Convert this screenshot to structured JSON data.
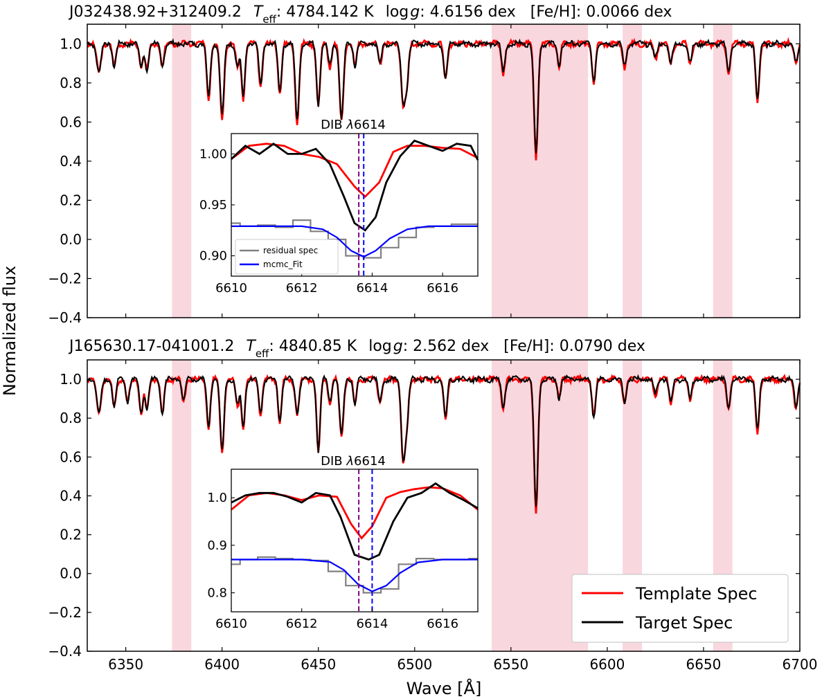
{
  "colors": {
    "template": "#ff0000",
    "target": "#000000",
    "residual": "#808080",
    "fit": "#0000ff",
    "dib_rest": "#800080",
    "dib_center": "#0000ff",
    "band": "#f4b6c2"
  },
  "chart_data": [
    {
      "type": "line",
      "name": "panel-top",
      "title_parts": {
        "id": "J032438.92+312409.2",
        "teff_label": "T",
        "teff_sub": "eff",
        "teff_value": ": 4784.142 K",
        "logg_label": "log",
        "logg_g": "g",
        "logg_value": ": 4.6156 dex",
        "feh": "[Fe/H]: 0.0066 dex"
      },
      "xlim": [
        6330,
        6700
      ],
      "ylim": [
        -0.4,
        1.1
      ],
      "yticks": [
        -0.4,
        -0.2,
        0.0,
        0.2,
        0.4,
        0.6,
        0.8,
        1.0
      ],
      "yticklabels": [
        "−0.4",
        "−0.2",
        "0.0",
        "0.2",
        "0.4",
        "0.6",
        "0.8",
        "1.0"
      ],
      "shaded_bands": [
        [
          6374,
          6384
        ],
        [
          6540,
          6590
        ],
        [
          6608,
          6618
        ],
        [
          6655,
          6665
        ]
      ],
      "absorption_lines": [
        [
          6336,
          0.15,
          1.2
        ],
        [
          6344,
          0.12,
          1.0
        ],
        [
          6358,
          0.12,
          1.0
        ],
        [
          6361,
          0.14,
          1.0
        ],
        [
          6369,
          0.12,
          1.0
        ],
        [
          6393,
          0.28,
          1.0
        ],
        [
          6400,
          0.38,
          1.1
        ],
        [
          6408,
          0.12,
          1.0
        ],
        [
          6411,
          0.28,
          1.0
        ],
        [
          6420,
          0.22,
          1.0
        ],
        [
          6430,
          0.25,
          1.0
        ],
        [
          6439,
          0.4,
          1.1
        ],
        [
          6450,
          0.32,
          1.0
        ],
        [
          6456,
          0.12,
          1.0
        ],
        [
          6462,
          0.4,
          1.1
        ],
        [
          6469,
          0.12,
          0.9
        ],
        [
          6482,
          0.1,
          1.0
        ],
        [
          6494,
          0.3,
          1.1
        ],
        [
          6496,
          0.2,
          1.0
        ],
        [
          6516,
          0.18,
          1.0
        ],
        [
          6546,
          0.15,
          1.0
        ],
        [
          6563,
          0.58,
          1.1
        ],
        [
          6575,
          0.12,
          0.9
        ],
        [
          6593,
          0.2,
          1.0
        ],
        [
          6609,
          0.12,
          1.0
        ],
        [
          6625,
          0.08,
          1.0
        ],
        [
          6633,
          0.1,
          1.0
        ],
        [
          6643,
          0.1,
          1.0
        ],
        [
          6663,
          0.15,
          1.0
        ],
        [
          6678,
          0.3,
          1.0
        ],
        [
          6698,
          0.1,
          1.0
        ]
      ],
      "inset": {
        "title_prefix": "DIB ",
        "title_lambda": "λ",
        "title_value": "6614",
        "xlim": [
          6610,
          6617
        ],
        "ylim": [
          0.88,
          1.02
        ],
        "xticks": [
          6610,
          6612,
          6614,
          6616
        ],
        "yticks": [
          0.9,
          0.95,
          1.0
        ],
        "yticklabels": [
          "0.90",
          "0.95",
          "1.00"
        ],
        "dib_rest_wave": 6613.62,
        "dib_center_wave": 6613.76,
        "template_x": [
          6610,
          6610.5,
          6611,
          6611.5,
          6612,
          6612.5,
          6613,
          6613.5,
          6613.8,
          6614.2,
          6614.6,
          6615,
          6615.5,
          6616,
          6616.5,
          6617
        ],
        "template_y": [
          0.995,
          1.008,
          1.01,
          1.008,
          1.0,
          0.997,
          0.99,
          0.968,
          0.958,
          0.972,
          1.002,
          1.008,
          1.008,
          1.006,
          1.005,
          0.996
        ],
        "target_x": [
          6610,
          6610.4,
          6610.8,
          6611.2,
          6611.6,
          6612,
          6612.4,
          6612.8,
          6613.2,
          6613.5,
          6613.8,
          6614.1,
          6614.4,
          6614.8,
          6615.2,
          6615.6,
          6616,
          6616.4,
          6616.8,
          6617
        ],
        "target_y": [
          0.995,
          1.008,
          1.0,
          1.01,
          1.0,
          1.0,
          1.005,
          0.99,
          0.958,
          0.932,
          0.925,
          0.938,
          0.972,
          0.998,
          1.013,
          1.008,
          1.003,
          1.01,
          1.008,
          0.994
        ],
        "residual_x": [
          6610,
          6610.5,
          6611,
          6611.5,
          6612,
          6612.5,
          6613,
          6613.5,
          6614,
          6614.5,
          6615,
          6615.5,
          6616,
          6616.5,
          6617
        ],
        "residual_y": [
          0.932,
          0.929,
          0.93,
          0.928,
          0.935,
          0.924,
          0.916,
          0.9,
          0.898,
          0.908,
          0.918,
          0.928,
          0.929,
          0.931,
          0.931
        ],
        "fit_x": [
          6610,
          6611,
          6612,
          6612.6,
          6613,
          6613.4,
          6613.76,
          6614.1,
          6614.5,
          6615,
          6615.6,
          6616,
          6617
        ],
        "fit_y": [
          0.929,
          0.929,
          0.929,
          0.926,
          0.918,
          0.905,
          0.899,
          0.905,
          0.917,
          0.926,
          0.929,
          0.929,
          0.929
        ],
        "legend_entries": [
          "residual spec",
          "mcmc_Fit"
        ]
      }
    },
    {
      "type": "line",
      "name": "panel-bottom",
      "title_parts": {
        "id": "J165630.17-041001.2",
        "teff_label": "T",
        "teff_sub": "eff",
        "teff_value": ": 4840.85 K",
        "logg_label": "log",
        "logg_g": "g",
        "logg_value": ": 2.562 dex",
        "feh": "[Fe/H]: 0.0790 dex"
      },
      "xlim": [
        6330,
        6700
      ],
      "ylim": [
        -0.4,
        1.1
      ],
      "xticks": [
        6350,
        6400,
        6450,
        6500,
        6550,
        6600,
        6650,
        6700
      ],
      "yticks": [
        -0.4,
        -0.2,
        0.0,
        0.2,
        0.4,
        0.6,
        0.8,
        1.0
      ],
      "yticklabels": [
        "−0.4",
        "−0.2",
        "0.0",
        "0.2",
        "0.4",
        "0.6",
        "0.8",
        "1.0"
      ],
      "xlabel": "Wave [Å]",
      "shaded_bands": [
        [
          6374,
          6384
        ],
        [
          6540,
          6590
        ],
        [
          6608,
          6618
        ],
        [
          6655,
          6665
        ]
      ],
      "absorption_lines": [
        [
          6336,
          0.18,
          1.2
        ],
        [
          6344,
          0.15,
          1.0
        ],
        [
          6351,
          0.12,
          1.0
        ],
        [
          6358,
          0.18,
          1.0
        ],
        [
          6361,
          0.16,
          1.0
        ],
        [
          6369,
          0.18,
          1.0
        ],
        [
          6380,
          0.12,
          1.0
        ],
        [
          6393,
          0.25,
          1.0
        ],
        [
          6400,
          0.38,
          1.1
        ],
        [
          6408,
          0.14,
          1.0
        ],
        [
          6411,
          0.25,
          1.0
        ],
        [
          6420,
          0.18,
          1.0
        ],
        [
          6430,
          0.22,
          1.0
        ],
        [
          6439,
          0.18,
          1.1
        ],
        [
          6450,
          0.38,
          1.0
        ],
        [
          6456,
          0.12,
          1.0
        ],
        [
          6462,
          0.3,
          1.1
        ],
        [
          6469,
          0.14,
          0.9
        ],
        [
          6482,
          0.12,
          1.0
        ],
        [
          6494,
          0.42,
          1.1
        ],
        [
          6496,
          0.22,
          1.0
        ],
        [
          6516,
          0.2,
          1.0
        ],
        [
          6546,
          0.15,
          1.0
        ],
        [
          6563,
          0.68,
          1.1
        ],
        [
          6575,
          0.1,
          0.9
        ],
        [
          6593,
          0.2,
          1.0
        ],
        [
          6609,
          0.12,
          1.0
        ],
        [
          6625,
          0.08,
          1.0
        ],
        [
          6633,
          0.12,
          1.0
        ],
        [
          6643,
          0.1,
          1.0
        ],
        [
          6663,
          0.15,
          1.0
        ],
        [
          6678,
          0.28,
          1.0
        ],
        [
          6698,
          0.15,
          1.0
        ]
      ],
      "inset": {
        "title_prefix": "DIB ",
        "title_lambda": "λ",
        "title_value": "6614",
        "xlim": [
          6610,
          6617
        ],
        "ylim": [
          0.76,
          1.06
        ],
        "xticks": [
          6610,
          6612,
          6614,
          6616
        ],
        "yticks": [
          0.8,
          0.9,
          1.0
        ],
        "yticklabels": [
          "0.8",
          "0.9",
          "1.0"
        ],
        "dib_rest_wave": 6613.62,
        "dib_center_wave": 6614.0,
        "template_x": [
          6610,
          6610.5,
          6611,
          6611.5,
          6612,
          6612.5,
          6613,
          6613.4,
          6613.7,
          6614,
          6614.4,
          6614.8,
          6615.2,
          6615.6,
          6616,
          6616.5,
          6617
        ],
        "template_y": [
          0.975,
          1.005,
          1.01,
          1.005,
          0.995,
          1.005,
          1.002,
          0.945,
          0.915,
          0.94,
          1.0,
          1.012,
          1.018,
          1.022,
          1.02,
          1.005,
          0.975
        ],
        "target_x": [
          6610,
          6610.4,
          6610.8,
          6611.2,
          6611.6,
          6612,
          6612.4,
          6612.8,
          6613.1,
          6613.5,
          6613.9,
          6614.2,
          6614.6,
          6615,
          6615.4,
          6615.8,
          6616.2,
          6616.6,
          6617
        ],
        "target_y": [
          0.99,
          1.005,
          1.01,
          1.01,
          1.002,
          0.99,
          1.01,
          1.005,
          0.96,
          0.88,
          0.87,
          0.88,
          0.95,
          1.0,
          1.01,
          1.03,
          1.01,
          0.995,
          0.978
        ],
        "residual_x": [
          6610,
          6610.5,
          6611,
          6611.5,
          6612,
          6612.5,
          6613,
          6613.5,
          6614,
          6614.5,
          6615,
          6615.5,
          6616,
          6616.5,
          6617
        ],
        "residual_y": [
          0.86,
          0.87,
          0.875,
          0.872,
          0.87,
          0.868,
          0.845,
          0.815,
          0.8,
          0.808,
          0.86,
          0.872,
          0.87,
          0.87,
          0.872
        ],
        "fit_x": [
          6610,
          6611,
          6612,
          6612.8,
          6613.2,
          6613.6,
          6614.0,
          6614.4,
          6614.8,
          6615.3,
          6616,
          6617
        ],
        "fit_y": [
          0.87,
          0.87,
          0.87,
          0.865,
          0.848,
          0.818,
          0.803,
          0.815,
          0.842,
          0.864,
          0.87,
          0.87
        ],
        "legend_entries": []
      }
    }
  ],
  "shared": {
    "ylabel": "Normalized flux",
    "legend": [
      "Template Spec",
      "Target Spec"
    ]
  }
}
